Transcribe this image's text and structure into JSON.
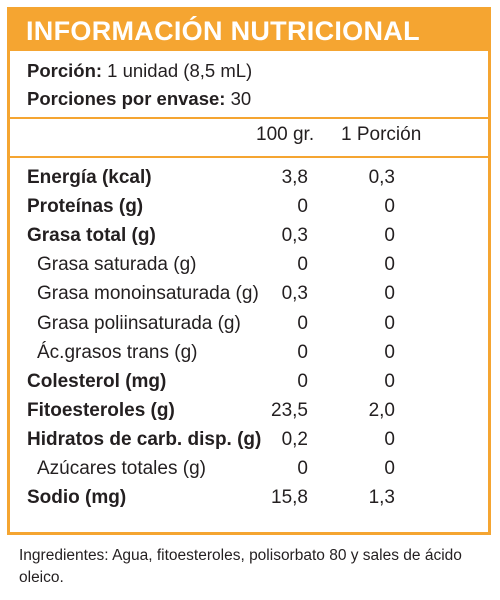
{
  "header": {
    "title": "INFORMACIÓN NUTRICIONAL"
  },
  "serving": {
    "portion_label": "Porción:",
    "portion_value": "1 unidad (8,5 mL)",
    "servings_label": "Porciones por envase:",
    "servings_value": "30"
  },
  "columns": {
    "col1": "100 gr.",
    "col2": "1 Porción"
  },
  "rows": [
    {
      "label": "Energía (kcal)",
      "v1": "3,8",
      "v2": "0,3",
      "bold": true
    },
    {
      "label": "Proteínas (g)",
      "v1": "0",
      "v2": "0",
      "bold": true
    },
    {
      "label": "Grasa total (g)",
      "v1": "0,3",
      "v2": "0",
      "bold": true
    },
    {
      "label": "Grasa saturada (g)",
      "v1": "0",
      "v2": "0",
      "bold": false
    },
    {
      "label": "Grasa monoinsaturada (g)",
      "v1": "0,3",
      "v2": "0",
      "bold": false
    },
    {
      "label": "Grasa poliinsaturada (g)",
      "v1": "0",
      "v2": "0",
      "bold": false
    },
    {
      "label": "Ác.grasos trans (g)",
      "v1": "0",
      "v2": "0",
      "bold": false
    },
    {
      "label": "Colesterol (mg)",
      "v1": "0",
      "v2": "0",
      "bold": true
    },
    {
      "label": "Fitoesteroles (g)",
      "v1": "23,5",
      "v2": "2,0",
      "bold": true
    },
    {
      "label": "Hidratos de carb. disp. (g)",
      "v1": "0,2",
      "v2": "0",
      "bold": true
    },
    {
      "label": "Azúcares totales (g)",
      "v1": "0",
      "v2": "0",
      "bold": false
    },
    {
      "label": "Sodio (mg)",
      "v1": "15,8",
      "v2": "1,3",
      "bold": true
    }
  ],
  "ingredients": "Ingredientes: Agua, fitoesteroles, polisorbato 80 y sales de ácido oleico.",
  "colors": {
    "accent": "#f5a531",
    "text": "#231f20"
  }
}
